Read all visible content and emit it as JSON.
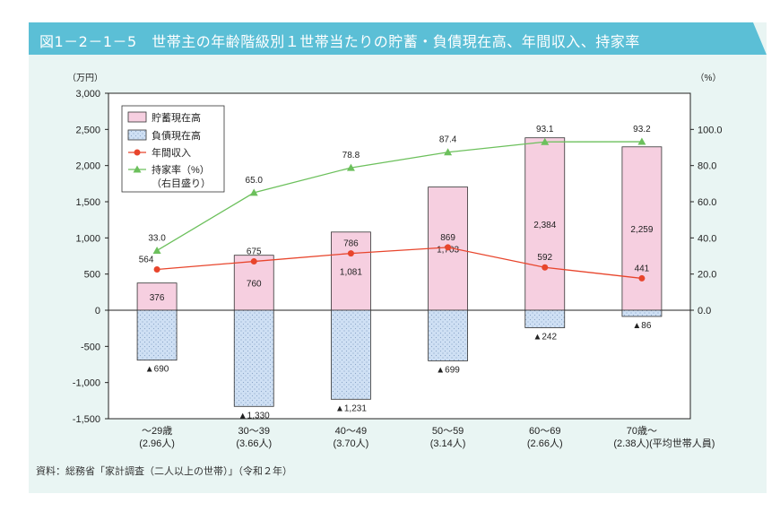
{
  "title": "図1－2－1－5　世帯主の年齢階級別１世帯当たりの貯蓄・負債現在高、年間収入、持家率",
  "source": "資料：総務省「家計調査（二人以上の世帯）」（令和２年）",
  "colors": {
    "title_bar": "#5bbfd6",
    "panel": "#e9f5f3",
    "savings": "#f6cfe0",
    "debt": "#cfe0f4",
    "income": "#e8452c",
    "homeownership": "#6cc05c"
  },
  "chart_data": {
    "type": "bar+line",
    "left_unit": "（万円）",
    "right_unit": "（%）",
    "ylim": [
      -1500,
      3000
    ],
    "y_ticks": [
      "3,000",
      "2,500",
      "2,000",
      "1,500",
      "1,000",
      "500",
      "0",
      "-500",
      "-1,000",
      "-1,500"
    ],
    "y_tick_values": [
      3000,
      2500,
      2000,
      1500,
      1000,
      500,
      0,
      -500,
      -1000,
      -1500
    ],
    "y2lim": [
      0,
      100
    ],
    "y2_ticks": [
      "100.0",
      "80.0",
      "60.0",
      "40.0",
      "20.0",
      "0.0"
    ],
    "y2_tick_values": [
      100,
      80,
      60,
      40,
      20,
      0
    ],
    "categories": [
      {
        "age": "～29歳",
        "members": "(2.96人)"
      },
      {
        "age": "30～39",
        "members": "(3.66人)"
      },
      {
        "age": "40～49",
        "members": "(3.70人)"
      },
      {
        "age": "50～59",
        "members": "(3.14人)"
      },
      {
        "age": "60～69",
        "members": "(2.66人)"
      },
      {
        "age": "70歳～",
        "members": "(2.38人)(平均世帯人員)"
      }
    ],
    "series": [
      {
        "name": "貯蓄現在高",
        "kind": "bar",
        "values": [
          376,
          760,
          1081,
          1703,
          2384,
          2259
        ],
        "labels": [
          "376",
          "760",
          "1,081",
          "1,703",
          "2,384",
          "2,259"
        ]
      },
      {
        "name": "負債現在高",
        "kind": "bar",
        "values": [
          -690,
          -1330,
          -1231,
          -699,
          -242,
          -86
        ],
        "labels": [
          "▲690",
          "▲1,330",
          "▲1,231",
          "▲699",
          "▲242",
          "▲86"
        ]
      },
      {
        "name": "年間収入",
        "kind": "line",
        "values": [
          564,
          675,
          786,
          869,
          592,
          441
        ],
        "labels": [
          "564",
          "675",
          "786",
          "869",
          "592",
          "441"
        ]
      },
      {
        "name": "持家率（%）",
        "name_note": "（右目盛り）",
        "kind": "line",
        "axis": "right",
        "values": [
          33.0,
          65.0,
          78.8,
          87.4,
          93.1,
          93.2
        ],
        "labels": [
          "33.0",
          "65.0",
          "78.8",
          "87.4",
          "93.1",
          "93.2"
        ]
      }
    ],
    "legend_position": "top-left"
  }
}
